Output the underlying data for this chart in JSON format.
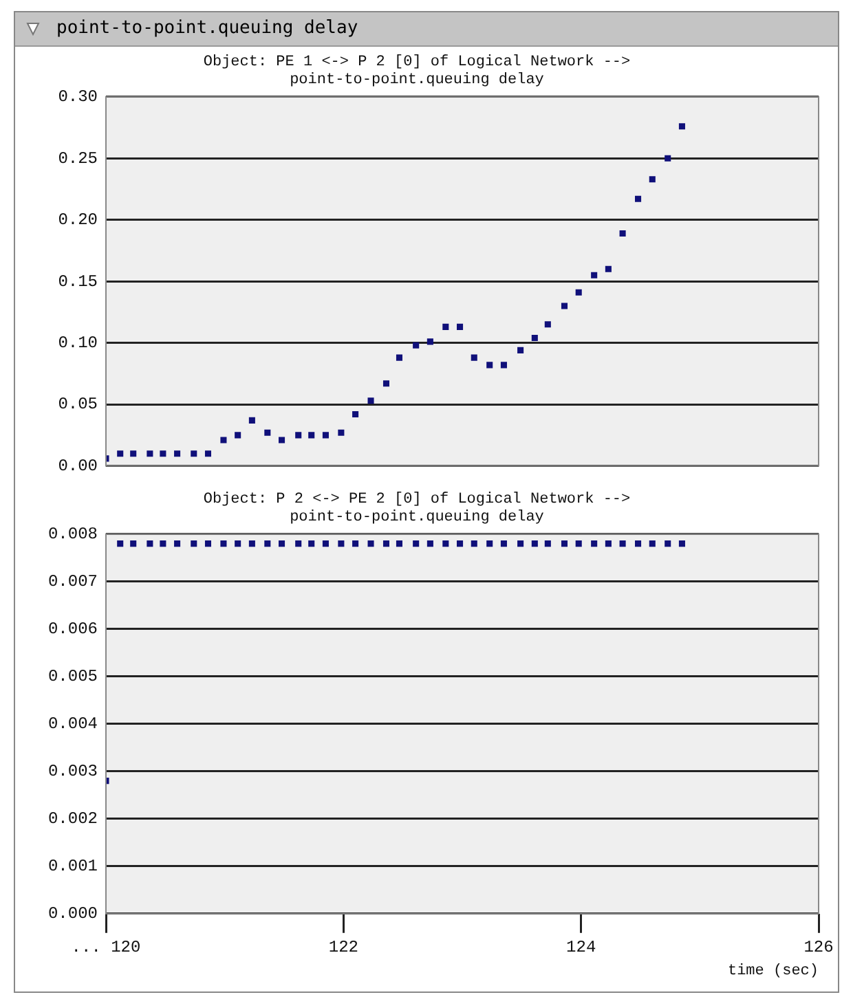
{
  "chart_data": [
    {
      "type": "scatter",
      "title": "Object: PE 1 <-> P 2 [0] of Logical Network -->\npoint-to-point.queuing delay",
      "annotations": [
        "point-to-point.queuing delay"
      ],
      "marker": "square",
      "grid": "y",
      "tick_labels": "y",
      "color": "#10107a",
      "x": [
        120.0,
        120.12,
        120.23,
        120.37,
        120.48,
        120.6,
        120.74,
        120.86,
        120.99,
        121.11,
        121.23,
        121.36,
        121.48,
        121.62,
        121.73,
        121.85,
        121.98,
        122.1,
        122.23,
        122.36,
        122.47,
        122.61,
        122.73,
        122.86,
        122.98,
        123.1,
        123.23,
        123.35,
        123.49,
        123.61,
        123.72,
        123.86,
        123.98,
        124.11,
        124.23,
        124.35,
        124.48,
        124.6,
        124.73,
        124.85
      ],
      "values": [
        0.006,
        0.01,
        0.01,
        0.01,
        0.01,
        0.01,
        0.01,
        0.01,
        0.021,
        0.025,
        0.037,
        0.027,
        0.021,
        0.025,
        0.025,
        0.025,
        0.027,
        0.042,
        0.053,
        0.067,
        0.088,
        0.098,
        0.101,
        0.113,
        0.113,
        0.088,
        0.082,
        0.082,
        0.094,
        0.104,
        0.115,
        0.13,
        0.141,
        0.155,
        0.16,
        0.189,
        0.217,
        0.233,
        0.25,
        0.276
      ],
      "xlim": [
        120,
        126
      ],
      "ylim": [
        0,
        0.3
      ],
      "yticks": [
        {
          "value": 0,
          "label": "0.00"
        },
        {
          "value": 0.05,
          "label": "0.05"
        },
        {
          "value": 0.1,
          "label": "0.10"
        },
        {
          "value": 0.15,
          "label": "0.15"
        },
        {
          "value": 0.2,
          "label": "0.20"
        },
        {
          "value": 0.25,
          "label": "0.25"
        },
        {
          "value": 0.3,
          "label": "0.30"
        }
      ]
    },
    {
      "type": "scatter",
      "title": "Object: P 2 <-> PE 2 [0] of Logical Network -->\npoint-to-point.queuing delay",
      "xlabel": "time (sec)",
      "marker": "square",
      "grid": "y",
      "color": "#10107a",
      "x": [
        120.0,
        120.12,
        120.23,
        120.37,
        120.48,
        120.6,
        120.74,
        120.86,
        120.99,
        121.11,
        121.23,
        121.36,
        121.48,
        121.62,
        121.73,
        121.85,
        121.98,
        122.1,
        122.23,
        122.36,
        122.47,
        122.61,
        122.73,
        122.86,
        122.98,
        123.1,
        123.23,
        123.35,
        123.49,
        123.61,
        123.72,
        123.86,
        123.98,
        124.11,
        124.23,
        124.35,
        124.48,
        124.6,
        124.73,
        124.85
      ],
      "values": [
        0.0028,
        0.0078,
        0.0078,
        0.0078,
        0.0078,
        0.0078,
        0.0078,
        0.0078,
        0.0078,
        0.0078,
        0.0078,
        0.0078,
        0.0078,
        0.0078,
        0.0078,
        0.0078,
        0.0078,
        0.0078,
        0.0078,
        0.0078,
        0.0078,
        0.0078,
        0.0078,
        0.0078,
        0.0078,
        0.0078,
        0.0078,
        0.0078,
        0.0078,
        0.0078,
        0.0078,
        0.0078,
        0.0078,
        0.0078,
        0.0078,
        0.0078,
        0.0078,
        0.0078,
        0.0078,
        0.0078
      ],
      "xlim": [
        120,
        126
      ],
      "xticks": [
        {
          "value": 120,
          "label": "... 120"
        },
        122,
        124,
        126
      ],
      "ylim": [
        0,
        0.008
      ],
      "yticks": [
        {
          "value": 0,
          "label": "0.000"
        },
        {
          "value": 0.001,
          "label": "0.001"
        },
        {
          "value": 0.002,
          "label": "0.002"
        },
        {
          "value": 0.003,
          "label": "0.003"
        },
        {
          "value": 0.004,
          "label": "0.004"
        },
        {
          "value": 0.005,
          "label": "0.005"
        },
        {
          "value": 0.006,
          "label": "0.006"
        },
        {
          "value": 0.007,
          "label": "0.007"
        },
        {
          "value": 0.008,
          "label": "0.008"
        }
      ]
    }
  ]
}
